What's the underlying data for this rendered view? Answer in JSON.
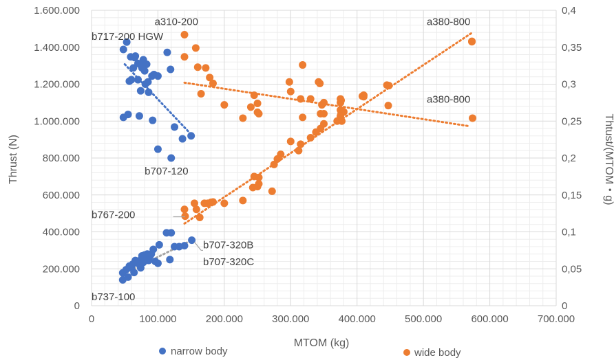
{
  "chart_data": {
    "type": "scatter",
    "title": "",
    "xlabel": "MTOM (kg)",
    "ylabel": "Thrust (N)",
    "y2label": "Thtust/(MTOM・g)",
    "xlim": [
      0,
      700000
    ],
    "ylim": [
      0,
      1600000
    ],
    "y2lim": [
      0,
      0.4
    ],
    "grid": true,
    "legend_position": "bottom",
    "x_ticks": [
      0,
      100000,
      200000,
      300000,
      400000,
      500000,
      600000,
      700000
    ],
    "x_tick_labels": [
      "0",
      "100.000",
      "200.000",
      "300.000",
      "400.000",
      "500.000",
      "600.000",
      "700.000"
    ],
    "y_ticks": [
      0,
      200000,
      400000,
      600000,
      800000,
      1000000,
      1200000,
      1400000,
      1600000
    ],
    "y_tick_labels": [
      "0",
      "200.000",
      "400.000",
      "600.000",
      "800.000",
      "1.000.000",
      "1.200.000",
      "1.400.000",
      "1.600.000"
    ],
    "y2_ticks": [
      0,
      0.05,
      0.1,
      0.15,
      0.2,
      0.25,
      0.3,
      0.35,
      0.4
    ],
    "y2_tick_labels": [
      "0",
      "0,05",
      "0,1",
      "0,15",
      "0,2",
      "0,25",
      "0,3",
      "0,35",
      "0,4"
    ],
    "series": [
      {
        "name": "narrow body",
        "color": "#4472C4",
        "axis": "left",
        "kind": "thrust",
        "points": [
          [
            47000,
            140000
          ],
          [
            47000,
            178000
          ],
          [
            52000,
            195000
          ],
          [
            55000,
            155000
          ],
          [
            57000,
            215000
          ],
          [
            60000,
            205000
          ],
          [
            62000,
            225000
          ],
          [
            64000,
            180000
          ],
          [
            66000,
            245000
          ],
          [
            70000,
            230000
          ],
          [
            73000,
            245000
          ],
          [
            74000,
            205000
          ],
          [
            76000,
            270000
          ],
          [
            78000,
            235000
          ],
          [
            80000,
            275000
          ],
          [
            82000,
            255000
          ],
          [
            84000,
            280000
          ],
          [
            86000,
            245000
          ],
          [
            88000,
            270000
          ],
          [
            90000,
            280000
          ],
          [
            93000,
            305000
          ],
          [
            96000,
            240000
          ],
          [
            100000,
            230000
          ],
          [
            102000,
            330000
          ],
          [
            113000,
            395000
          ],
          [
            118000,
            250000
          ],
          [
            120000,
            395000
          ],
          [
            125000,
            320000
          ],
          [
            132000,
            320000
          ],
          [
            140000,
            325000
          ],
          [
            151000,
            355000
          ]
        ]
      },
      {
        "name": "narrow body",
        "color": "#4472C4",
        "axis": "right",
        "kind": "ratio",
        "points": [
          [
            48000,
            0.347
          ],
          [
            48000,
            0.255
          ],
          [
            53000,
            0.357
          ],
          [
            55000,
            0.259
          ],
          [
            57000,
            0.304
          ],
          [
            59000,
            0.337
          ],
          [
            60000,
            0.306
          ],
          [
            63000,
            0.322
          ],
          [
            65000,
            0.336
          ],
          [
            66000,
            0.338
          ],
          [
            70000,
            0.328
          ],
          [
            70000,
            0.306
          ],
          [
            72000,
            0.257
          ],
          [
            74000,
            0.326
          ],
          [
            74000,
            0.291
          ],
          [
            76000,
            0.322
          ],
          [
            78000,
            0.333
          ],
          [
            80000,
            0.318
          ],
          [
            81000,
            0.3
          ],
          [
            83000,
            0.327
          ],
          [
            85000,
            0.303
          ],
          [
            86000,
            0.289
          ],
          [
            91000,
            0.311
          ],
          [
            92000,
            0.251
          ],
          [
            94000,
            0.313
          ],
          [
            100000,
            0.311
          ],
          [
            100000,
            0.212
          ],
          [
            114000,
            0.343
          ],
          [
            119000,
            0.32
          ],
          [
            120000,
            0.2
          ],
          [
            125000,
            0.242
          ],
          [
            137000,
            0.226
          ],
          [
            150000,
            0.23
          ]
        ]
      },
      {
        "name": "wide body",
        "color": "#ED7D31",
        "axis": "left",
        "kind": "thrust",
        "points": [
          [
            140000,
            522000
          ],
          [
            141000,
            485000
          ],
          [
            155000,
            555000
          ],
          [
            158000,
            522000
          ],
          [
            163000,
            478000
          ],
          [
            170000,
            555000
          ],
          [
            175000,
            555000
          ],
          [
            180000,
            560000
          ],
          [
            183000,
            562000
          ],
          [
            200000,
            555000
          ],
          [
            228000,
            570000
          ],
          [
            243000,
            640000
          ],
          [
            245000,
            700000
          ],
          [
            250000,
            645000
          ],
          [
            252000,
            660000
          ],
          [
            252000,
            695000
          ],
          [
            272000,
            620000
          ],
          [
            275000,
            765000
          ],
          [
            280000,
            795000
          ],
          [
            285000,
            820000
          ],
          [
            300000,
            890000
          ],
          [
            312000,
            840000
          ],
          [
            315000,
            875000
          ],
          [
            330000,
            910000
          ],
          [
            338000,
            940000
          ],
          [
            345000,
            960000
          ],
          [
            350000,
            985000
          ],
          [
            370000,
            1000000
          ],
          [
            375000,
            1020000
          ],
          [
            376000,
            1040000
          ],
          [
            380000,
            1050000
          ],
          [
            408000,
            1135000
          ],
          [
            410000,
            1140000
          ],
          [
            445000,
            1195000
          ],
          [
            573000,
            1430000
          ]
        ]
      },
      {
        "name": "wide body",
        "color": "#ED7D31",
        "axis": "right",
        "kind": "ratio",
        "points": [
          [
            140000,
            0.367
          ],
          [
            140000,
            0.337
          ],
          [
            157000,
            0.349
          ],
          [
            160000,
            0.323
          ],
          [
            165000,
            0.287
          ],
          [
            172000,
            0.322
          ],
          [
            178000,
            0.309
          ],
          [
            183000,
            0.301
          ],
          [
            200000,
            0.272
          ],
          [
            228000,
            0.254
          ],
          [
            240000,
            0.269
          ],
          [
            245000,
            0.285
          ],
          [
            250000,
            0.262
          ],
          [
            250000,
            0.274
          ],
          [
            252000,
            0.26
          ],
          [
            298000,
            0.303
          ],
          [
            300000,
            0.29
          ],
          [
            315000,
            0.28
          ],
          [
            318000,
            0.326
          ],
          [
            318000,
            0.255
          ],
          [
            330000,
            0.28
          ],
          [
            342000,
            0.303
          ],
          [
            344000,
            0.301
          ],
          [
            345000,
            0.26
          ],
          [
            347000,
            0.272
          ],
          [
            350000,
            0.275
          ],
          [
            350000,
            0.26
          ],
          [
            375000,
            0.28
          ],
          [
            375000,
            0.275
          ],
          [
            375000,
            0.265
          ],
          [
            375000,
            0.257
          ],
          [
            376000,
            0.278
          ],
          [
            377000,
            0.25
          ],
          [
            410000,
            0.285
          ],
          [
            410000,
            0.283
          ],
          [
            447000,
            0.271
          ],
          [
            448000,
            0.298
          ],
          [
            573000,
            0.358
          ],
          [
            574000,
            0.254
          ]
        ]
      }
    ],
    "trendlines": [
      {
        "name": "narrow body ratio trend",
        "color": "#4472C4",
        "axis": "right",
        "from": [
          50000,
          0.327
        ],
        "to": [
          150000,
          0.232
        ]
      },
      {
        "name": "narrow body thrust trend",
        "color": "#A5A5A5",
        "axis": "left",
        "from": [
          47000,
          170000
        ],
        "to": [
          151000,
          355000
        ]
      },
      {
        "name": "wide body thrust trend",
        "color": "#ED7D31",
        "axis": "left",
        "from": [
          140000,
          445000
        ],
        "to": [
          573000,
          1478000
        ]
      },
      {
        "name": "wide body ratio trend",
        "color": "#ED7D31",
        "axis": "right",
        "from": [
          140000,
          0.302
        ],
        "to": [
          570000,
          0.243
        ]
      }
    ],
    "annotations": [
      {
        "text": "b717-200 HGW",
        "x": 0,
        "y": 1440000,
        "axis": "left",
        "anchor": "start"
      },
      {
        "text": "a310-200",
        "x": 95000,
        "y": 1520000,
        "axis": "left",
        "anchor": "start"
      },
      {
        "text": "a380-800",
        "x": 505000,
        "y": 1520000,
        "axis": "left",
        "anchor": "start"
      },
      {
        "text": "a380-800",
        "x": 505000,
        "y": 1100000,
        "axis": "left",
        "anchor": "start"
      },
      {
        "text": "b707-120",
        "x": 80000,
        "y": 710000,
        "axis": "left",
        "anchor": "start"
      },
      {
        "text": "b767-200",
        "x": 0,
        "y": 475000,
        "axis": "left",
        "anchor": "start"
      },
      {
        "text": "b707-320B",
        "x": 168000,
        "y": 310000,
        "axis": "left",
        "anchor": "start"
      },
      {
        "text": "b707-320C",
        "x": 168000,
        "y": 220000,
        "axis": "left",
        "anchor": "start"
      },
      {
        "text": "b737-100",
        "x": 0,
        "y": 30000,
        "axis": "left",
        "anchor": "start"
      }
    ],
    "leader_lines": [
      {
        "from": [
          123000,
          482000
        ],
        "to": [
          141000,
          482000
        ]
      },
      {
        "from": [
          155000,
          345000
        ],
        "to": [
          165000,
          300000
        ]
      },
      {
        "from": [
          165000,
          300000
        ],
        "to": [
          168000,
          300000
        ]
      }
    ],
    "legend": [
      {
        "label": "narrow body",
        "color": "#4472C4"
      },
      {
        "label": "wide body",
        "color": "#ED7D31"
      }
    ]
  }
}
